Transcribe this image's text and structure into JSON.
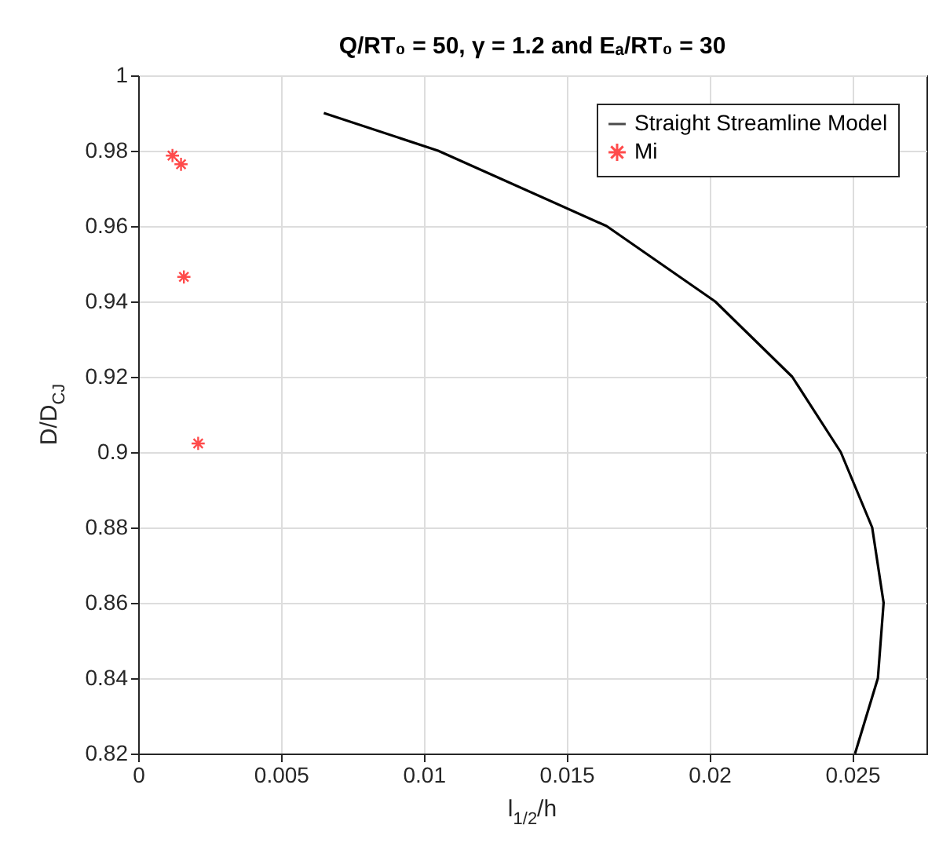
{
  "chart_data": {
    "type": "line",
    "title": "Q/RT₀ = 50, γ = 1.2 and Eₐ/RT₀ = 30",
    "xlabel": "l$_{1/2}$/h",
    "ylabel": "D/D$_{CJ}$",
    "series": [
      {
        "name": "Straight Streamline Model",
        "color": "#000000",
        "marker": "none",
        "line_style": "solid",
        "x": [
          0.0065,
          0.0105,
          0.0164,
          0.0202,
          0.0229,
          0.0246,
          0.0257,
          0.0261,
          0.0259,
          0.0251
        ],
        "values": [
          0.99,
          0.98,
          0.96,
          0.94,
          0.92,
          0.9,
          0.88,
          0.86,
          0.84,
          0.82
        ]
      },
      {
        "name": "Mi",
        "type": "scatter",
        "color": "#ff0000",
        "marker": "cross",
        "x": [
          0.0012,
          0.0015,
          0.0016,
          0.0021
        ],
        "values": [
          0.9787,
          0.9764,
          0.9465,
          0.9023
        ]
      }
    ],
    "xlim": [
      0,
      0.0276
    ],
    "xticks": [
      0,
      0.005,
      0.01,
      0.015,
      0.02,
      0.025
    ],
    "ylim": [
      0.82,
      1
    ],
    "yticks": [
      0.82,
      0.84,
      0.86,
      0.88,
      0.9,
      0.92,
      0.94,
      0.96,
      0.98,
      1
    ],
    "grid": true,
    "legend": "top right"
  }
}
